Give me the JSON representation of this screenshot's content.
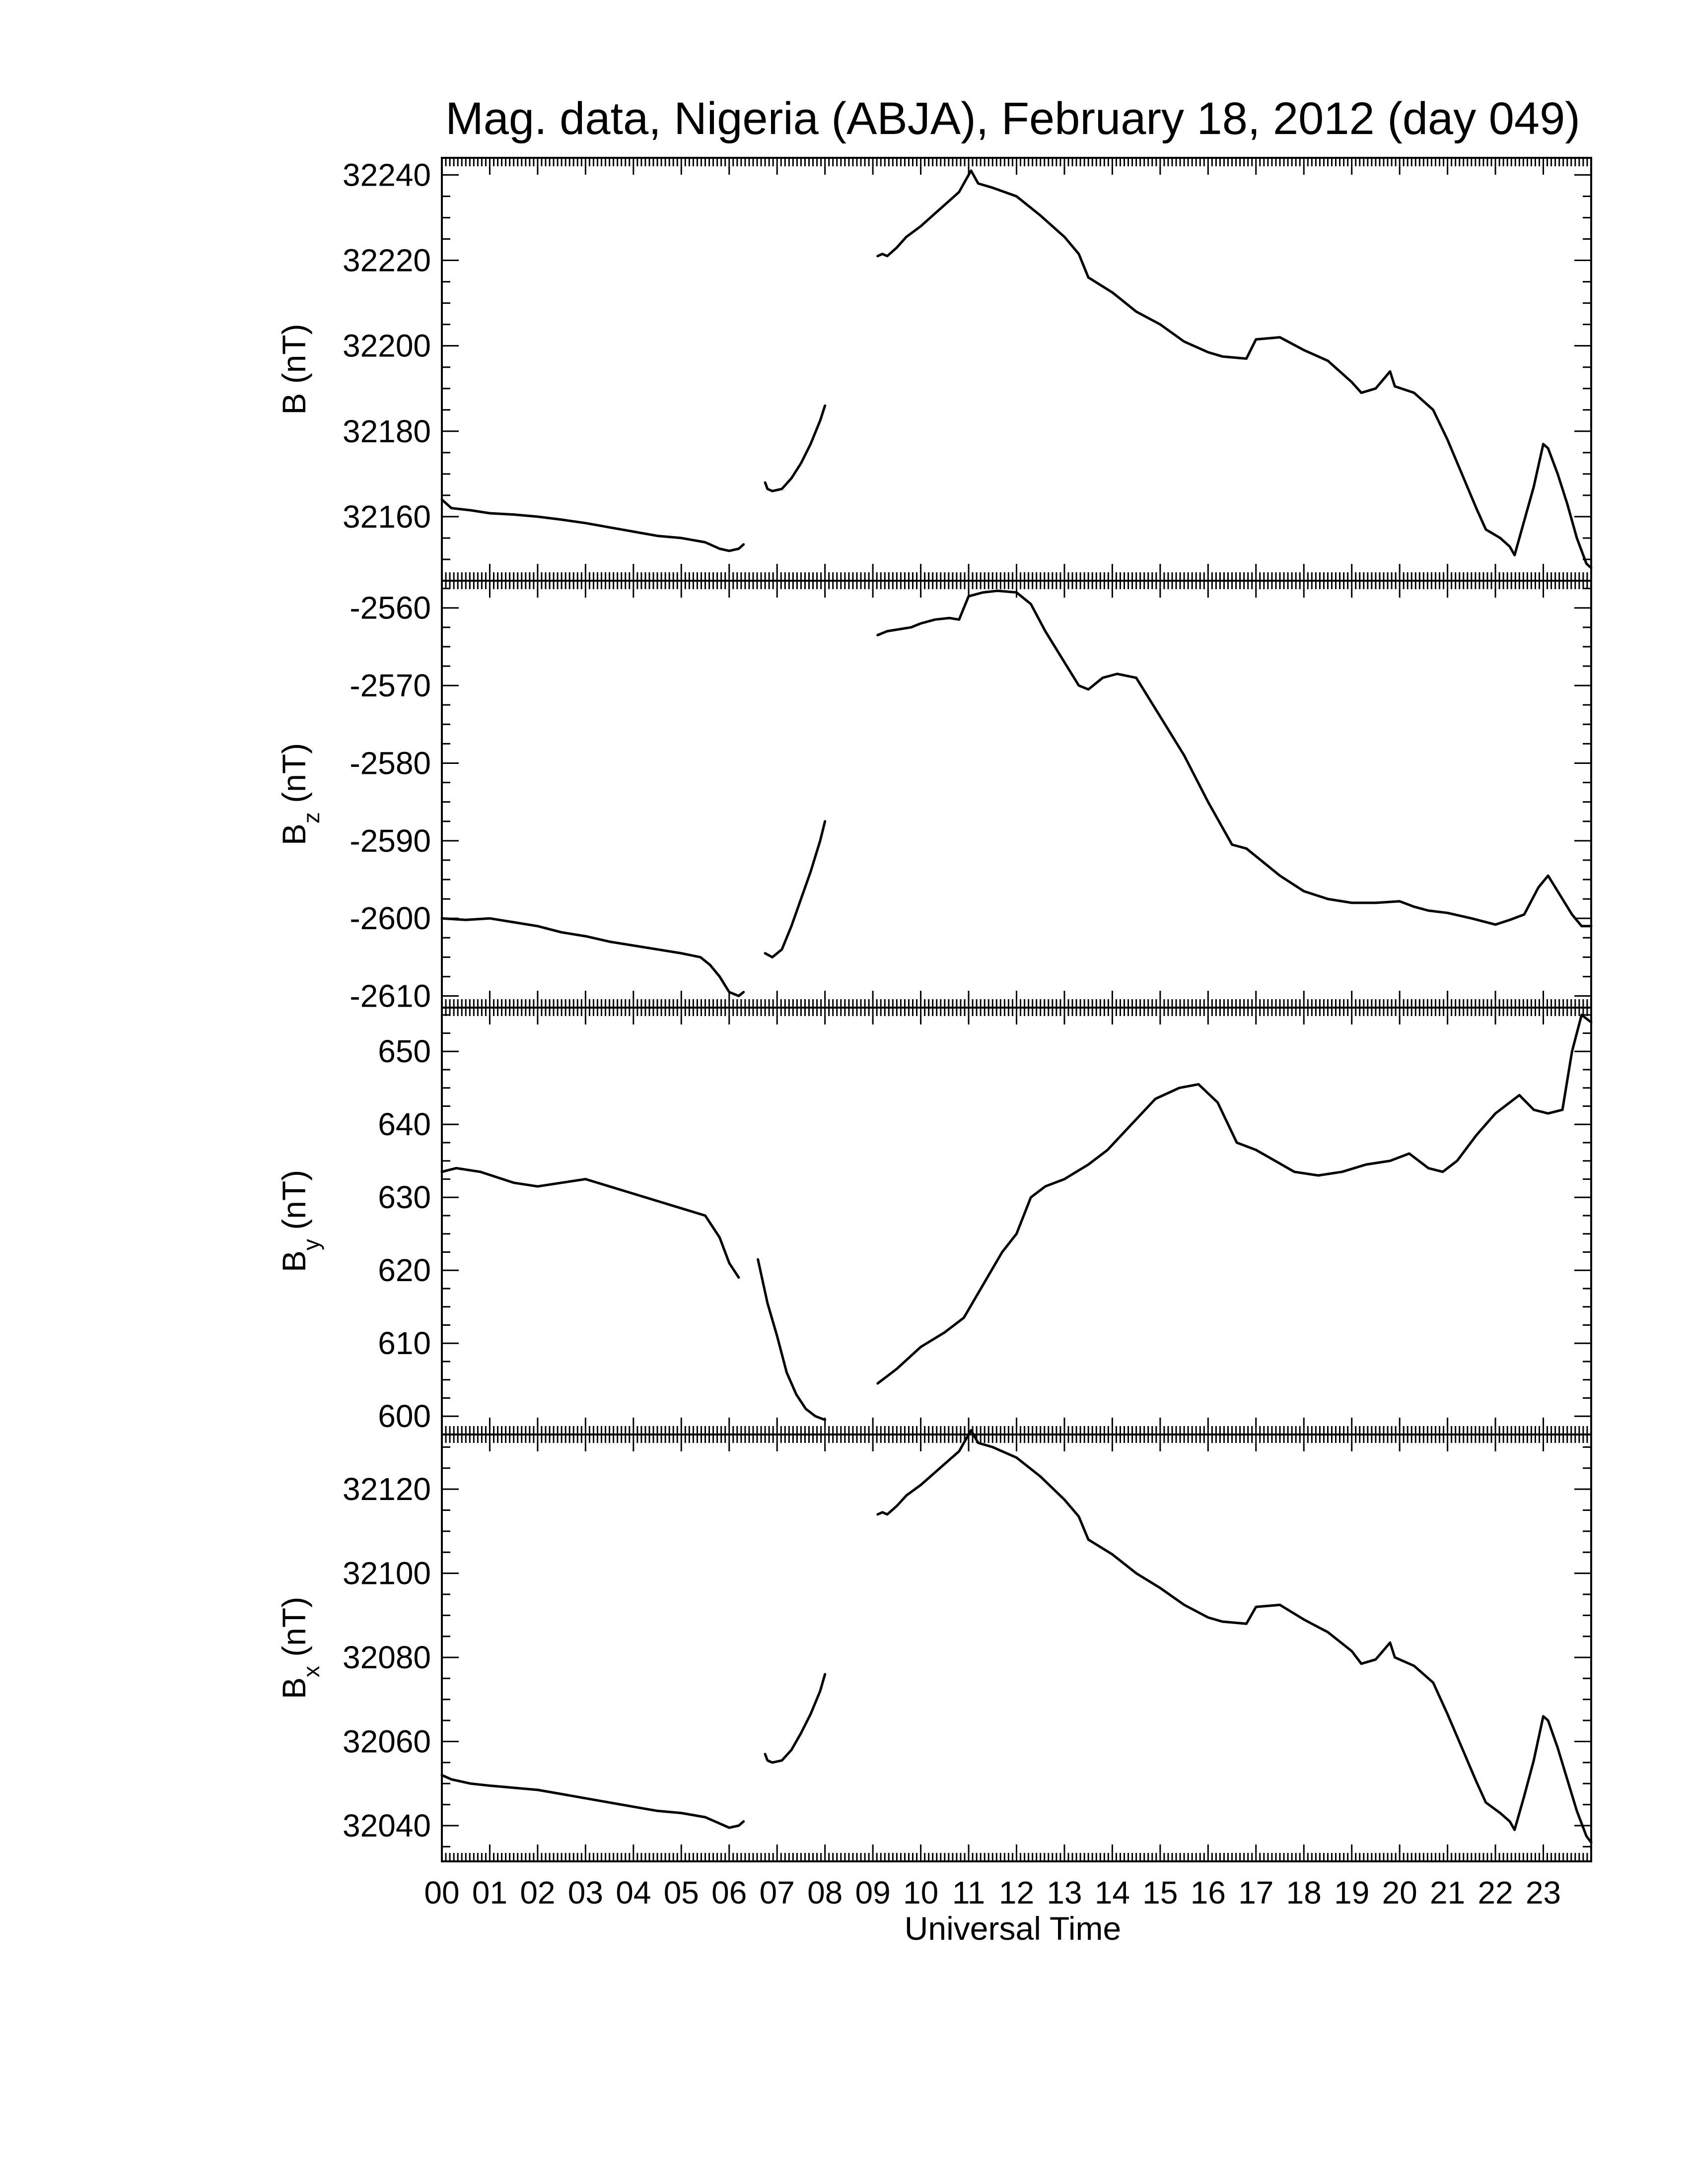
{
  "title": "Mag. data, Nigeria (ABJA), February 18, 2012 (day 049)",
  "chart_data": [
    {
      "type": "line",
      "ylabel": "B (nT)",
      "ylabel_main": "B",
      "ylabel_sub": "",
      "ylabel_unit": "(nT)",
      "ylim": [
        32145,
        32244
      ],
      "yticks": [
        32160,
        32180,
        32200,
        32220,
        32240
      ],
      "xlim": [
        0,
        24
      ],
      "segments": [
        [
          [
            0,
            32164
          ],
          [
            0.2,
            32162
          ],
          [
            0.6,
            32161.5
          ],
          [
            1.0,
            32160.8
          ],
          [
            1.5,
            32160.5
          ],
          [
            2.0,
            32160
          ],
          [
            2.5,
            32159.3
          ],
          [
            3.0,
            32158.5
          ],
          [
            3.5,
            32157.5
          ],
          [
            4.0,
            32156.5
          ],
          [
            4.5,
            32155.5
          ],
          [
            5.0,
            32155
          ],
          [
            5.5,
            32154
          ],
          [
            5.8,
            32152.5
          ],
          [
            6.0,
            32152
          ],
          [
            6.2,
            32152.5
          ],
          [
            6.3,
            32153.5
          ]
        ],
        [
          [
            6.75,
            32168
          ],
          [
            6.8,
            32166.5
          ],
          [
            6.9,
            32166
          ],
          [
            7.1,
            32166.5
          ],
          [
            7.3,
            32169
          ],
          [
            7.5,
            32172.5
          ],
          [
            7.7,
            32177
          ],
          [
            7.9,
            32182.5
          ],
          [
            8.0,
            32186
          ]
        ],
        [
          [
            9.1,
            32221
          ],
          [
            9.2,
            32221.5
          ],
          [
            9.3,
            32221
          ],
          [
            9.5,
            32223
          ],
          [
            9.7,
            32225.5
          ],
          [
            10.0,
            32228
          ],
          [
            10.3,
            32231
          ],
          [
            10.6,
            32234
          ],
          [
            10.8,
            32236
          ],
          [
            10.95,
            32239
          ],
          [
            11.05,
            32241
          ],
          [
            11.2,
            32238
          ],
          [
            11.5,
            32237
          ],
          [
            12.0,
            32235
          ],
          [
            12.5,
            32230.5
          ],
          [
            13.0,
            32225.5
          ],
          [
            13.3,
            32221.5
          ],
          [
            13.5,
            32216
          ],
          [
            14.0,
            32212.5
          ],
          [
            14.5,
            32208
          ],
          [
            15.0,
            32205
          ],
          [
            15.5,
            32201
          ],
          [
            16.0,
            32198.5
          ],
          [
            16.3,
            32197.5
          ],
          [
            16.8,
            32197
          ],
          [
            17.0,
            32201.5
          ],
          [
            17.5,
            32202
          ],
          [
            18.0,
            32199
          ],
          [
            18.5,
            32196.5
          ],
          [
            19.0,
            32191.5
          ],
          [
            19.2,
            32189
          ],
          [
            19.5,
            32190
          ],
          [
            19.8,
            32194
          ],
          [
            19.9,
            32190.5
          ],
          [
            20.3,
            32189
          ],
          [
            20.7,
            32185
          ],
          [
            21.0,
            32178
          ],
          [
            21.3,
            32170
          ],
          [
            21.6,
            32162
          ],
          [
            21.8,
            32157
          ],
          [
            22.1,
            32155
          ],
          [
            22.3,
            32153
          ],
          [
            22.4,
            32151
          ],
          [
            22.6,
            32159
          ],
          [
            22.8,
            32167
          ],
          [
            23.0,
            32177
          ],
          [
            23.1,
            32176
          ],
          [
            23.3,
            32170
          ],
          [
            23.5,
            32163
          ],
          [
            23.7,
            32155
          ],
          [
            23.9,
            32149
          ],
          [
            24.0,
            32148
          ]
        ]
      ]
    },
    {
      "type": "line",
      "ylabel": "B_z (nT)",
      "ylabel_main": "B",
      "ylabel_sub": "z",
      "ylabel_unit": "(nT)",
      "ylim": [
        -2611.5,
        -2556.5
      ],
      "yticks": [
        -2610,
        -2600,
        -2590,
        -2580,
        -2570,
        -2560
      ],
      "xlim": [
        0,
        24
      ],
      "segments": [
        [
          [
            0,
            -2600
          ],
          [
            0.5,
            -2600.2
          ],
          [
            1.0,
            -2600
          ],
          [
            1.5,
            -2600.5
          ],
          [
            2.0,
            -2601
          ],
          [
            2.5,
            -2601.8
          ],
          [
            3.0,
            -2602.3
          ],
          [
            3.5,
            -2603
          ],
          [
            4.0,
            -2603.5
          ],
          [
            4.5,
            -2604
          ],
          [
            5.0,
            -2604.5
          ],
          [
            5.4,
            -2605
          ],
          [
            5.6,
            -2606
          ],
          [
            5.8,
            -2607.5
          ],
          [
            6.0,
            -2609.5
          ],
          [
            6.2,
            -2610
          ],
          [
            6.3,
            -2609.5
          ]
        ],
        [
          [
            6.75,
            -2604.5
          ],
          [
            6.9,
            -2605
          ],
          [
            7.1,
            -2604
          ],
          [
            7.3,
            -2601
          ],
          [
            7.5,
            -2597.5
          ],
          [
            7.7,
            -2594
          ],
          [
            7.9,
            -2590
          ],
          [
            8.0,
            -2587.5
          ]
        ],
        [
          [
            9.1,
            -2563.5
          ],
          [
            9.3,
            -2563
          ],
          [
            9.5,
            -2562.8
          ],
          [
            9.8,
            -2562.5
          ],
          [
            10.0,
            -2562
          ],
          [
            10.3,
            -2561.5
          ],
          [
            10.6,
            -2561.3
          ],
          [
            10.8,
            -2561.5
          ],
          [
            11.0,
            -2558.5
          ],
          [
            11.3,
            -2558
          ],
          [
            11.6,
            -2557.8
          ],
          [
            12.0,
            -2558
          ],
          [
            12.3,
            -2559.5
          ],
          [
            12.6,
            -2563
          ],
          [
            13.0,
            -2567
          ],
          [
            13.3,
            -2570
          ],
          [
            13.5,
            -2570.5
          ],
          [
            13.8,
            -2569
          ],
          [
            14.1,
            -2568.5
          ],
          [
            14.5,
            -2569
          ],
          [
            15.0,
            -2574
          ],
          [
            15.5,
            -2579
          ],
          [
            16.0,
            -2585
          ],
          [
            16.5,
            -2590.5
          ],
          [
            16.8,
            -2591
          ],
          [
            17.0,
            -2592
          ],
          [
            17.5,
            -2594.5
          ],
          [
            18.0,
            -2596.5
          ],
          [
            18.5,
            -2597.5
          ],
          [
            19.0,
            -2598
          ],
          [
            19.5,
            -2598
          ],
          [
            20.0,
            -2597.8
          ],
          [
            20.3,
            -2598.5
          ],
          [
            20.6,
            -2599
          ],
          [
            21.0,
            -2599.3
          ],
          [
            21.5,
            -2600
          ],
          [
            22.0,
            -2600.8
          ],
          [
            22.3,
            -2600.2
          ],
          [
            22.6,
            -2599.5
          ],
          [
            22.9,
            -2596
          ],
          [
            23.1,
            -2594.5
          ],
          [
            23.3,
            -2596.5
          ],
          [
            23.6,
            -2599.5
          ],
          [
            23.8,
            -2601
          ],
          [
            24.0,
            -2601
          ]
        ]
      ]
    },
    {
      "type": "line",
      "ylabel": "B_y (nT)",
      "ylabel_main": "B",
      "ylabel_sub": "y",
      "ylabel_unit": "(nT)",
      "ylim": [
        597.5,
        656
      ],
      "yticks": [
        600,
        610,
        620,
        630,
        640,
        650
      ],
      "xlim": [
        0,
        24
      ],
      "segments": [
        [
          [
            0,
            633.5
          ],
          [
            0.3,
            634
          ],
          [
            0.8,
            633.5
          ],
          [
            1.5,
            632
          ],
          [
            2.0,
            631.5
          ],
          [
            2.5,
            632
          ],
          [
            3.0,
            632.5
          ],
          [
            3.5,
            631.5
          ],
          [
            4.0,
            630.5
          ],
          [
            4.5,
            629.5
          ],
          [
            5.0,
            628.5
          ],
          [
            5.5,
            627.5
          ],
          [
            5.8,
            624.5
          ],
          [
            6.0,
            621
          ],
          [
            6.2,
            619
          ]
        ],
        [
          [
            6.6,
            621.5
          ],
          [
            6.8,
            615.5
          ],
          [
            7.0,
            611
          ],
          [
            7.2,
            606
          ],
          [
            7.4,
            603
          ],
          [
            7.6,
            601
          ],
          [
            7.8,
            600
          ],
          [
            8.0,
            599.5
          ]
        ],
        [
          [
            9.1,
            604.5
          ],
          [
            9.5,
            606.5
          ],
          [
            10.0,
            609.5
          ],
          [
            10.5,
            611.5
          ],
          [
            10.9,
            613.5
          ],
          [
            11.3,
            618
          ],
          [
            11.7,
            622.5
          ],
          [
            12.0,
            625
          ],
          [
            12.3,
            630
          ],
          [
            12.6,
            631.5
          ],
          [
            13.0,
            632.5
          ],
          [
            13.5,
            634.5
          ],
          [
            13.9,
            636.5
          ],
          [
            14.4,
            640
          ],
          [
            14.9,
            643.5
          ],
          [
            15.4,
            645
          ],
          [
            15.8,
            645.5
          ],
          [
            16.2,
            643
          ],
          [
            16.6,
            637.5
          ],
          [
            17.0,
            636.5
          ],
          [
            17.4,
            635
          ],
          [
            17.8,
            633.5
          ],
          [
            18.3,
            633
          ],
          [
            18.8,
            633.5
          ],
          [
            19.3,
            634.5
          ],
          [
            19.8,
            635
          ],
          [
            20.2,
            636
          ],
          [
            20.6,
            634
          ],
          [
            20.9,
            633.5
          ],
          [
            21.2,
            635
          ],
          [
            21.6,
            638.5
          ],
          [
            22.0,
            641.5
          ],
          [
            22.3,
            643
          ],
          [
            22.5,
            644
          ],
          [
            22.8,
            642
          ],
          [
            23.1,
            641.5
          ],
          [
            23.4,
            642
          ],
          [
            23.6,
            650
          ],
          [
            23.8,
            655
          ],
          [
            24.0,
            654
          ]
        ]
      ]
    },
    {
      "type": "line",
      "ylabel": "B_x (nT)",
      "ylabel_main": "B",
      "ylabel_sub": "x",
      "ylabel_unit": "(nT)",
      "ylim": [
        32031.5,
        32133
      ],
      "yticks": [
        32040,
        32060,
        32080,
        32100,
        32120
      ],
      "xlim": [
        0,
        24
      ],
      "segments": [
        [
          [
            0,
            32052
          ],
          [
            0.2,
            32051
          ],
          [
            0.6,
            32050
          ],
          [
            1.0,
            32049.5
          ],
          [
            1.5,
            32049
          ],
          [
            2.0,
            32048.5
          ],
          [
            2.5,
            32047.5
          ],
          [
            3.0,
            32046.5
          ],
          [
            3.5,
            32045.5
          ],
          [
            4.0,
            32044.5
          ],
          [
            4.5,
            32043.5
          ],
          [
            5.0,
            32043
          ],
          [
            5.5,
            32042
          ],
          [
            5.8,
            32040.5
          ],
          [
            6.0,
            32039.5
          ],
          [
            6.2,
            32040
          ],
          [
            6.3,
            32041
          ]
        ],
        [
          [
            6.75,
            32057
          ],
          [
            6.8,
            32055.5
          ],
          [
            6.9,
            32055
          ],
          [
            7.1,
            32055.5
          ],
          [
            7.3,
            32058
          ],
          [
            7.5,
            32062
          ],
          [
            7.7,
            32066.5
          ],
          [
            7.9,
            32072
          ],
          [
            8.0,
            32076
          ]
        ],
        [
          [
            9.1,
            32114
          ],
          [
            9.2,
            32114.5
          ],
          [
            9.3,
            32114
          ],
          [
            9.5,
            32116
          ],
          [
            9.7,
            32118.5
          ],
          [
            10.0,
            32121
          ],
          [
            10.3,
            32124
          ],
          [
            10.6,
            32127
          ],
          [
            10.8,
            32129
          ],
          [
            10.95,
            32132
          ],
          [
            11.05,
            32134
          ],
          [
            11.2,
            32131
          ],
          [
            11.5,
            32130
          ],
          [
            12.0,
            32127.5
          ],
          [
            12.5,
            32123
          ],
          [
            13.0,
            32117.5
          ],
          [
            13.3,
            32113.5
          ],
          [
            13.5,
            32108
          ],
          [
            14.0,
            32104.5
          ],
          [
            14.5,
            32100
          ],
          [
            15.0,
            32096.5
          ],
          [
            15.5,
            32092.5
          ],
          [
            16.0,
            32089.5
          ],
          [
            16.3,
            32088.5
          ],
          [
            16.8,
            32088
          ],
          [
            17.0,
            32092
          ],
          [
            17.5,
            32092.5
          ],
          [
            18.0,
            32089
          ],
          [
            18.5,
            32086
          ],
          [
            19.0,
            32081.5
          ],
          [
            19.2,
            32078.5
          ],
          [
            19.5,
            32079.5
          ],
          [
            19.8,
            32083.5
          ],
          [
            19.9,
            32080
          ],
          [
            20.3,
            32078
          ],
          [
            20.7,
            32074
          ],
          [
            21.0,
            32066.5
          ],
          [
            21.3,
            32058.5
          ],
          [
            21.6,
            32050.5
          ],
          [
            21.8,
            32045.5
          ],
          [
            22.1,
            32043
          ],
          [
            22.3,
            32041
          ],
          [
            22.4,
            32039
          ],
          [
            22.6,
            32047
          ],
          [
            22.8,
            32055.5
          ],
          [
            23.0,
            32066
          ],
          [
            23.1,
            32065
          ],
          [
            23.3,
            32058.5
          ],
          [
            23.5,
            32051
          ],
          [
            23.7,
            32043.5
          ],
          [
            23.9,
            32037.5
          ],
          [
            24.0,
            32036
          ]
        ]
      ]
    }
  ],
  "x_axis": {
    "label": "Universal Time",
    "tick_labels": [
      "00",
      "01",
      "02",
      "03",
      "04",
      "05",
      "06",
      "07",
      "08",
      "09",
      "10",
      "11",
      "12",
      "13",
      "14",
      "15",
      "16",
      "17",
      "18",
      "19",
      "20",
      "21",
      "22",
      "23"
    ]
  }
}
